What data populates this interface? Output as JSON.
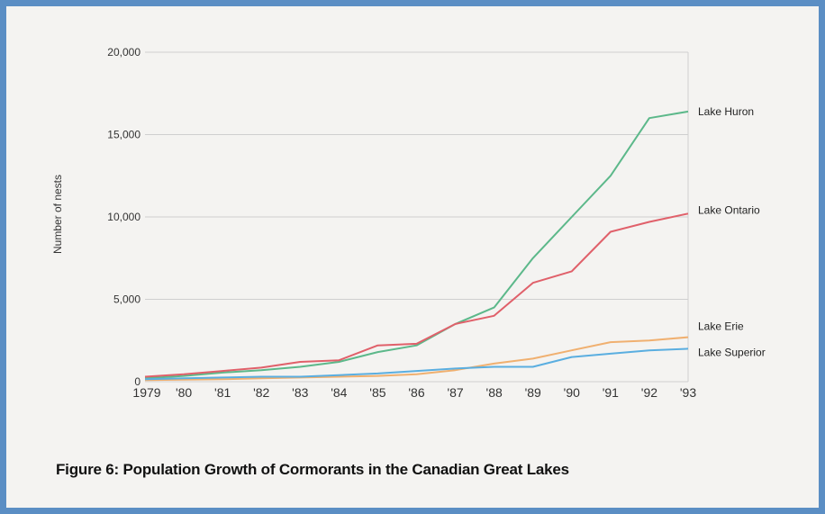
{
  "caption": "Figure 6: Population Growth of Cormorants in the Canadian Great Lakes",
  "chart_data": {
    "type": "line",
    "ylabel": "Number of nests",
    "ylim": [
      0,
      20000
    ],
    "yticks": [
      0,
      5000,
      10000,
      15000,
      20000
    ],
    "ytick_labels": [
      "0",
      "5,000",
      "10,000",
      "15,000",
      "20,000"
    ],
    "x": [
      1979,
      1980,
      1981,
      1982,
      1983,
      1984,
      1985,
      1986,
      1987,
      1988,
      1989,
      1990,
      1991,
      1992,
      1993
    ],
    "x_tick_labels": [
      "1979",
      "'80",
      "'81",
      "'82",
      "'83",
      "'84",
      "'85",
      "'86",
      "'87",
      "'88",
      "'89",
      "'90",
      "'91",
      "'92",
      "'93"
    ],
    "grid": true,
    "legend": "labels at right end of lines",
    "series": [
      {
        "name": "Lake Huron",
        "color": "#5cb88a",
        "values": [
          200,
          350,
          550,
          700,
          900,
          1200,
          1800,
          2200,
          3500,
          4500,
          7500,
          10000,
          12500,
          16000,
          16400
        ]
      },
      {
        "name": "Lake Ontario",
        "color": "#e0606a",
        "values": [
          300,
          450,
          650,
          850,
          1200,
          1300,
          2200,
          2300,
          3500,
          4000,
          6000,
          6700,
          9100,
          9700,
          10200
        ]
      },
      {
        "name": "Lake Erie",
        "color": "#f0b070",
        "values": [
          100,
          120,
          150,
          200,
          250,
          300,
          350,
          450,
          700,
          1100,
          1400,
          1900,
          2400,
          2500,
          2700
        ]
      },
      {
        "name": "Lake Superior",
        "color": "#5aaee0",
        "values": [
          150,
          200,
          250,
          300,
          300,
          400,
          500,
          650,
          800,
          900,
          900,
          1500,
          1700,
          1900,
          2000
        ]
      }
    ]
  }
}
